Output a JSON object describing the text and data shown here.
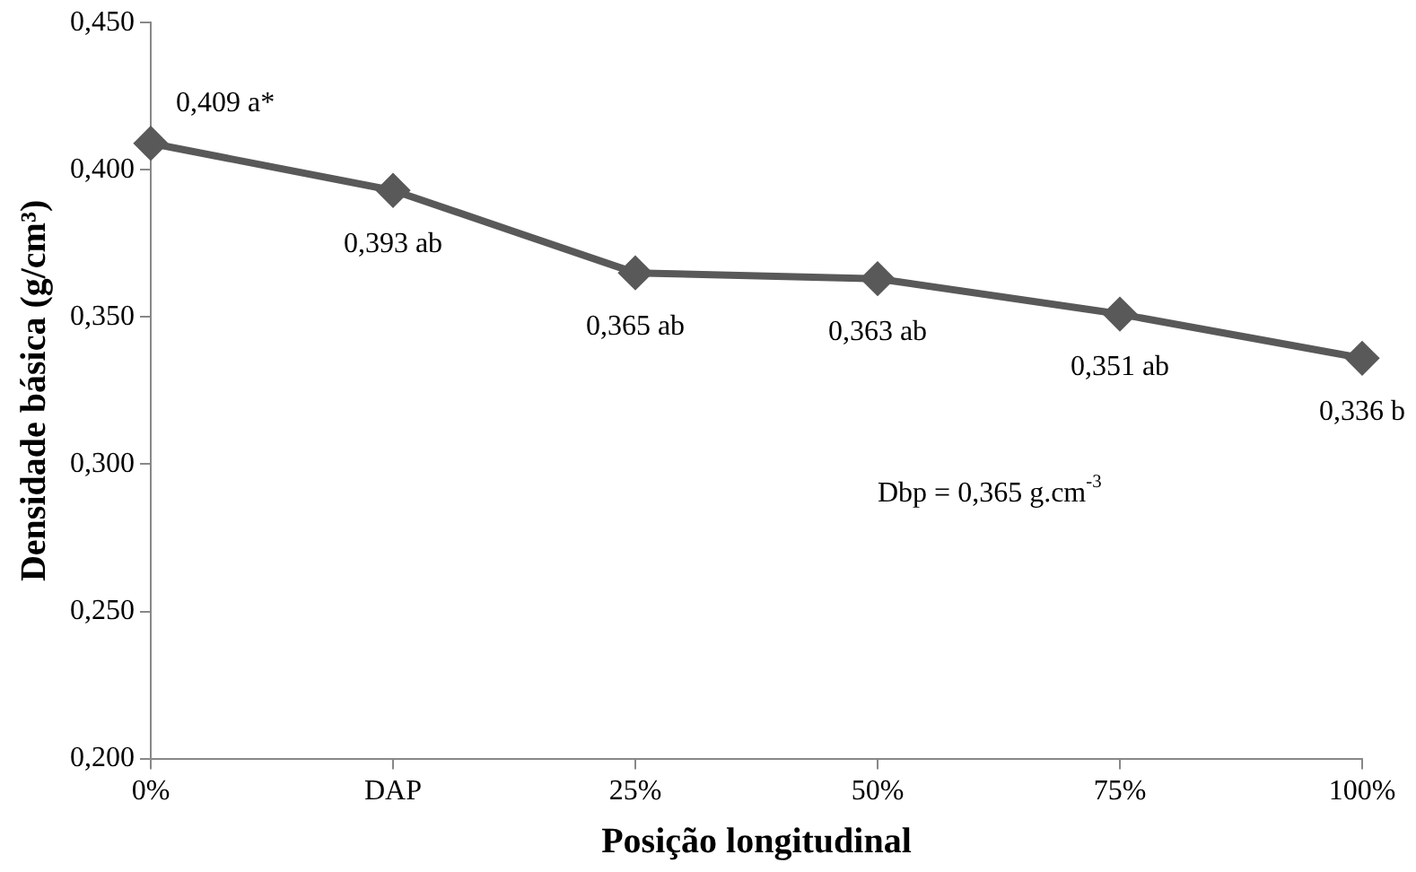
{
  "chart_data": {
    "type": "line",
    "xlabel": "Posição longitudinal",
    "ylabel": "Densidade básica (g/cm³)",
    "categories": [
      "0%",
      "DAP",
      "25%",
      "50%",
      "75%",
      "100%"
    ],
    "series": [
      {
        "color": "#595959",
        "values": [
          0.409,
          0.393,
          0.365,
          0.363,
          0.351,
          0.336
        ],
        "value_labels": [
          "0,409 a*",
          "0,393 ab",
          "0,365 ab",
          "0,363 ab",
          "0,351 ab",
          "0,336 b"
        ]
      }
    ],
    "ylim": [
      0.2,
      0.45
    ],
    "yticks": [
      {
        "value": 0.2,
        "label": "0,200"
      },
      {
        "value": 0.25,
        "label": "0,250"
      },
      {
        "value": 0.3,
        "label": "0,300"
      },
      {
        "value": 0.35,
        "label": "0,350"
      },
      {
        "value": 0.4,
        "label": "0,400"
      },
      {
        "value": 0.45,
        "label": "0,450"
      }
    ],
    "annotations": [
      "Dbp = 0,365 g.cm$^{-3}$"
    ],
    "grid": false,
    "legend": false,
    "marker": "diamond",
    "line_style": "solid"
  }
}
